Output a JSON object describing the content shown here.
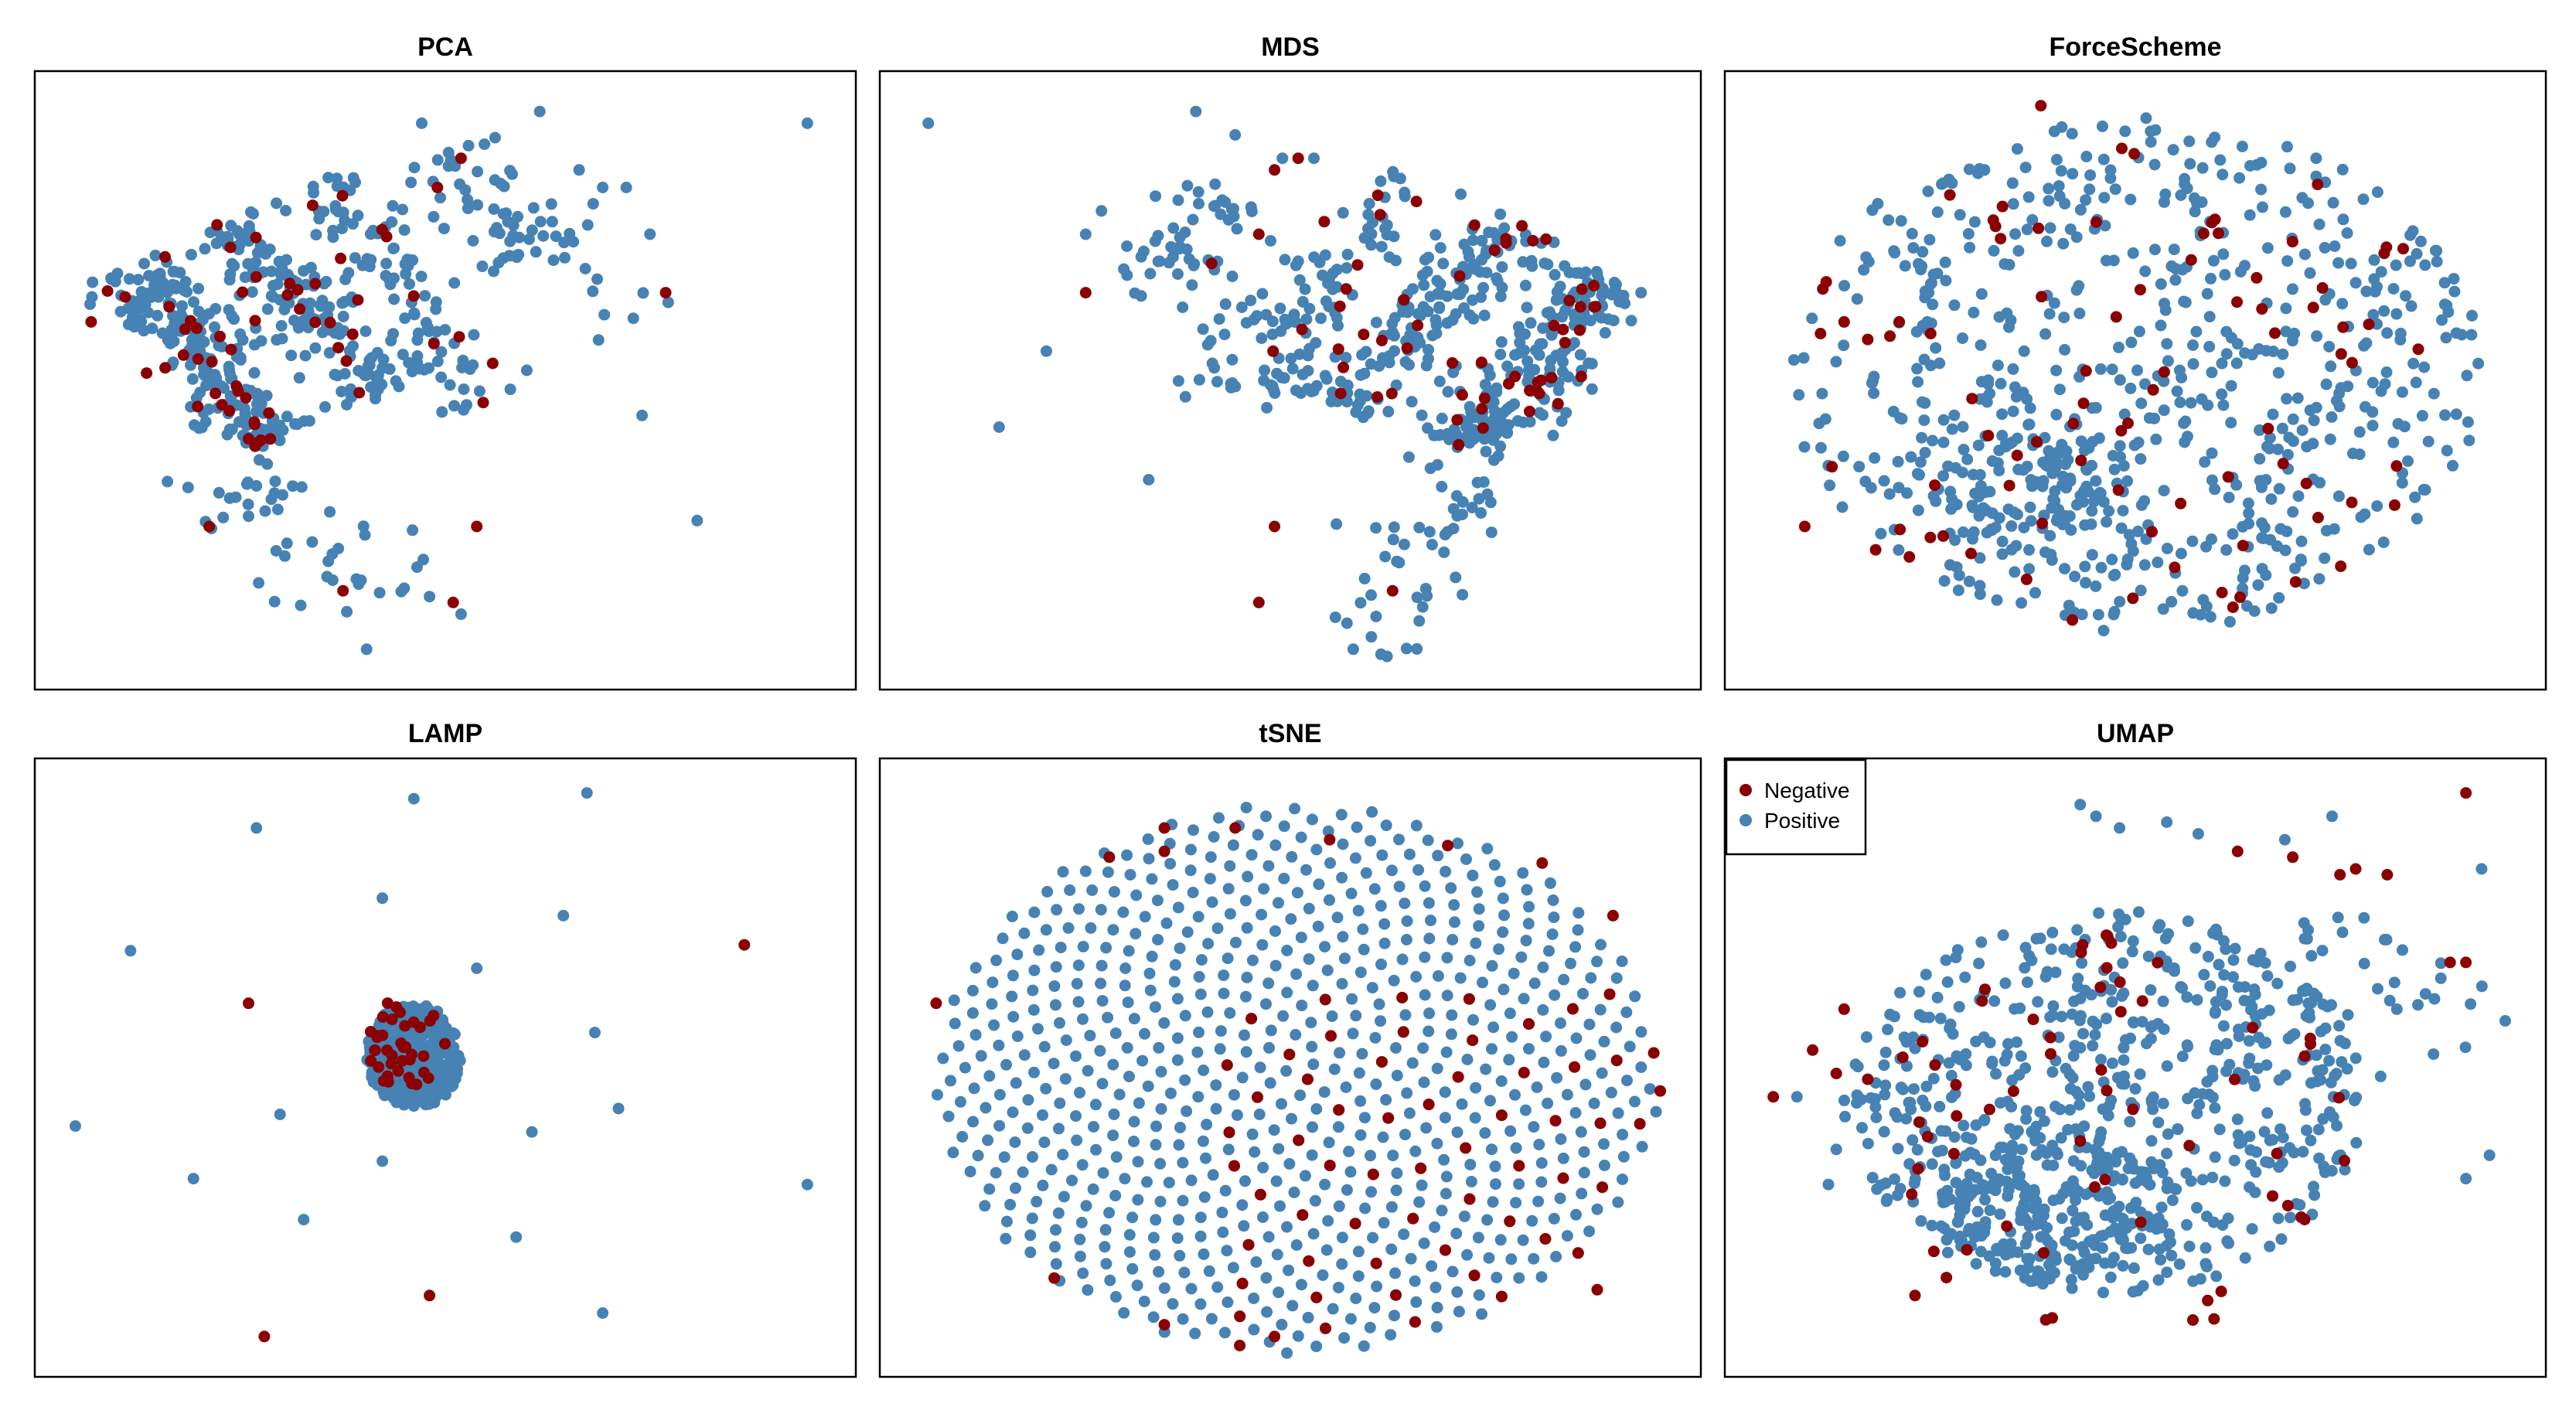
{
  "colors": {
    "negative": "#8b0000",
    "positive": "#4682b4",
    "frame": "#000000"
  },
  "legend": {
    "entries": [
      {
        "label": "Negative",
        "color": "#8b0000"
      },
      {
        "label": "Positive",
        "color": "#4682b4"
      }
    ],
    "placement": "top-left of UMAP panel"
  },
  "chart_data": [
    {
      "type": "scatter",
      "title": "PCA",
      "xlim": [
        0,
        100
      ],
      "ylim": [
        0,
        100
      ],
      "axes": "none",
      "series": [
        {
          "name": "Positive",
          "color": "#4682b4",
          "pattern": [
            {
              "kind": "band",
              "n": 200,
              "x0": 10,
              "y0": 70,
              "x1": 28,
              "y1": 40,
              "spread": 3.2
            },
            {
              "kind": "band",
              "n": 150,
              "x0": 21,
              "y0": 77,
              "x1": 43,
              "y1": 48,
              "spread": 3.0
            },
            {
              "kind": "band",
              "n": 90,
              "x0": 34,
              "y0": 85,
              "x1": 56,
              "y1": 45,
              "spread": 3.0
            },
            {
              "kind": "band",
              "n": 50,
              "x0": 50,
              "y0": 90,
              "x1": 62,
              "y1": 70,
              "spread": 4.0
            },
            {
              "kind": "band",
              "n": 50,
              "x0": 22,
              "y0": 38,
              "x1": 42,
              "y1": 10,
              "spread": 4.5
            },
            {
              "kind": "band",
              "n": 20,
              "x0": 58,
              "y0": 80,
              "x1": 75,
              "y1": 60,
              "spread": 4.0
            },
            {
              "kind": "list",
              "points": [
                [
                  62,
                  96
                ],
                [
                  96,
                  94
                ],
                [
                  47,
                  94
                ],
                [
                  67,
                  86
                ],
                [
                  70,
                  83
                ],
                [
                  73,
                  83
                ],
                [
                  76,
                  75
                ],
                [
                  75,
                  44
                ],
                [
                  82,
                  26
                ],
                [
                  52,
                  10
                ],
                [
                  48,
                  13
                ],
                [
                  40,
                  4
                ]
              ]
            }
          ]
        },
        {
          "name": "Negative",
          "color": "#8b0000",
          "pattern": [
            {
              "kind": "band",
              "n": 28,
              "x0": 10,
              "y0": 70,
              "x1": 28,
              "y1": 40,
              "spread": 3.0
            },
            {
              "kind": "band",
              "n": 18,
              "x0": 21,
              "y0": 77,
              "x1": 43,
              "y1": 48,
              "spread": 3.0
            },
            {
              "kind": "band",
              "n": 10,
              "x0": 34,
              "y0": 85,
              "x1": 56,
              "y1": 45,
              "spread": 3.0
            },
            {
              "kind": "list",
              "points": [
                [
                  49,
                  83
                ],
                [
                  52,
                  88
                ],
                [
                  78,
                  65
                ],
                [
                  54,
                  25
                ],
                [
                  51,
                  12
                ],
                [
                  37,
                  14
                ],
                [
                  25,
                  40
                ],
                [
                  20,
                  25
                ],
                [
                  5,
                  60
                ]
              ]
            }
          ]
        }
      ]
    },
    {
      "type": "scatter",
      "title": "MDS",
      "xlim": [
        0,
        100
      ],
      "ylim": [
        0,
        100
      ],
      "axes": "none",
      "series": [
        {
          "name": "Positive",
          "color": "#4682b4",
          "pattern": [
            {
              "kind": "band",
              "n": 200,
              "x0": 72,
              "y0": 38,
              "x1": 90,
              "y1": 68,
              "spread": 3.2
            },
            {
              "kind": "band",
              "n": 150,
              "x0": 57,
              "y0": 45,
              "x1": 79,
              "y1": 77,
              "spread": 3.0
            },
            {
              "kind": "band",
              "n": 90,
              "x0": 44,
              "y0": 45,
              "x1": 65,
              "y1": 85,
              "spread": 3.0
            },
            {
              "kind": "band",
              "n": 50,
              "x0": 30,
              "y0": 65,
              "x1": 44,
              "y1": 82,
              "spread": 4.0
            },
            {
              "kind": "band",
              "n": 50,
              "x0": 58,
              "y0": 5,
              "x1": 75,
              "y1": 35,
              "spread": 4.5
            },
            {
              "kind": "band",
              "n": 20,
              "x0": 37,
              "y0": 45,
              "x1": 48,
              "y1": 65,
              "spread": 3.5
            },
            {
              "kind": "list",
              "points": [
                [
                  4,
                  94
                ],
                [
                  38,
                  96
                ],
                [
                  43,
                  92
                ],
                [
                  49,
                  88
                ],
                [
                  53,
                  88
                ],
                [
                  24,
                  75
                ],
                [
                  26,
                  79
                ],
                [
                  19,
                  55
                ],
                [
                  13,
                  42
                ],
                [
                  32,
                  33
                ],
                [
                  58,
                  4
                ]
              ]
            }
          ]
        },
        {
          "name": "Negative",
          "color": "#8b0000",
          "pattern": [
            {
              "kind": "band",
              "n": 28,
              "x0": 72,
              "y0": 38,
              "x1": 90,
              "y1": 68,
              "spread": 3.0
            },
            {
              "kind": "band",
              "n": 18,
              "x0": 57,
              "y0": 45,
              "x1": 79,
              "y1": 77,
              "spread": 3.0
            },
            {
              "kind": "band",
              "n": 10,
              "x0": 44,
              "y0": 45,
              "x1": 65,
              "y1": 85,
              "spread": 3.0
            },
            {
              "kind": "list",
              "points": [
                [
                  24,
                  65
                ],
                [
                  48,
                  86
                ],
                [
                  51,
                  88
                ],
                [
                  46,
                  75
                ],
                [
                  40,
                  70
                ],
                [
                  46,
                  12
                ],
                [
                  63,
                  14
                ],
                [
                  48,
                  25
                ]
              ]
            }
          ]
        }
      ]
    },
    {
      "type": "scatter",
      "title": "ForceScheme",
      "xlim": [
        0,
        100
      ],
      "ylim": [
        0,
        100
      ],
      "axes": "none",
      "series": [
        {
          "name": "Positive",
          "color": "#4682b4",
          "pattern": [
            {
              "kind": "blob",
              "n": 640,
              "cx": 50,
              "cy": 51,
              "rx": 44,
              "ry": 44
            },
            {
              "kind": "blob",
              "n": 90,
              "cx": 38,
              "cy": 33,
              "rx": 12,
              "ry": 10
            }
          ]
        },
        {
          "name": "Negative",
          "color": "#8b0000",
          "pattern": [
            {
              "kind": "blob",
              "n": 75,
              "cx": 50,
              "cy": 51,
              "rx": 43,
              "ry": 43
            },
            {
              "kind": "list",
              "points": [
                [
                  38,
                  97
                ],
                [
                  42,
                  9
                ],
                [
                  8,
                  25
                ],
                [
                  17,
                  21
                ],
                [
                  13,
                  60
                ],
                [
                  10,
                  58
                ],
                [
                  16,
                  57
                ],
                [
                  20,
                  60
                ],
                [
                  24,
                  58
                ],
                [
                  34,
                  32
                ],
                [
                  55,
                  18
                ]
              ]
            }
          ]
        }
      ]
    },
    {
      "type": "scatter",
      "title": "LAMP",
      "xlim": [
        0,
        100
      ],
      "ylim": [
        0,
        100
      ],
      "axes": "none",
      "series": [
        {
          "name": "Positive",
          "color": "#4682b4",
          "pattern": [
            {
              "kind": "blob",
              "n": 420,
              "cx": 46,
              "cy": 52,
              "rx": 6,
              "ry": 9
            },
            {
              "kind": "list",
              "points": [
                [
                  46,
                  96
                ],
                [
                  68,
                  97
                ],
                [
                  26,
                  91
                ],
                [
                  42,
                  79
                ],
                [
                  65,
                  76
                ],
                [
                  10,
                  70
                ],
                [
                  54,
                  67
                ],
                [
                  69,
                  56
                ],
                [
                  3,
                  40
                ],
                [
                  29,
                  42
                ],
                [
                  61,
                  39
                ],
                [
                  72,
                  43
                ],
                [
                  18,
                  31
                ],
                [
                  42,
                  34
                ],
                [
                  32,
                  24
                ],
                [
                  59,
                  21
                ],
                [
                  96,
                  30
                ],
                [
                  70,
                  8
                ]
              ]
            }
          ]
        },
        {
          "name": "Negative",
          "color": "#8b0000",
          "pattern": [
            {
              "kind": "blob",
              "n": 40,
              "cx": 45,
              "cy": 54,
              "rx": 5,
              "ry": 8
            },
            {
              "kind": "list",
              "points": [
                [
                  88,
                  71
                ],
                [
                  25,
                  61
                ],
                [
                  48,
                  11
                ],
                [
                  27,
                  4
                ]
              ]
            }
          ]
        }
      ]
    },
    {
      "type": "scatter",
      "title": "tSNE",
      "xlim": [
        0,
        100
      ],
      "ylim": [
        0,
        100
      ],
      "axes": "none",
      "series": [
        {
          "name": "Positive",
          "color": "#4682b4",
          "pattern": [
            {
              "kind": "spiral",
              "n": 740,
              "cx": 51,
              "cy": 48,
              "rx": 46,
              "ry": 47
            }
          ]
        },
        {
          "name": "Negative",
          "color": "#8b0000",
          "pattern": [
            {
              "kind": "spiral-subset",
              "every": 6,
              "n": 740,
              "cx": 51,
              "cy": 48,
              "rx": 46,
              "ry": 47,
              "region": "lower-right"
            },
            {
              "kind": "list",
              "points": [
                [
                  5,
                  61
                ],
                [
                  34,
                  91
                ],
                [
                  43,
                  91
                ],
                [
                  27,
                  86
                ],
                [
                  34,
                  87
                ],
                [
                  55,
                  89
                ],
                [
                  70,
                  88
                ],
                [
                  82,
                  85
                ],
                [
                  91,
                  76
                ],
                [
                  97,
                  46
                ],
                [
                  20,
                  14
                ],
                [
                  34,
                  6
                ],
                [
                  48,
                  4
                ],
                [
                  89,
                  12
                ]
              ]
            }
          ]
        }
      ]
    },
    {
      "type": "scatter",
      "title": "UMAP",
      "xlim": [
        0,
        100
      ],
      "ylim": [
        0,
        100
      ],
      "axes": "none",
      "series": [
        {
          "name": "Positive",
          "color": "#4682b4",
          "pattern": [
            {
              "kind": "blob",
              "n": 620,
              "cx": 46,
              "cy": 44,
              "rx": 33,
              "ry": 33
            },
            {
              "kind": "blob",
              "n": 160,
              "cx": 38,
              "cy": 27,
              "rx": 14,
              "ry": 14
            },
            {
              "kind": "blob",
              "n": 50,
              "cx": 78,
              "cy": 62,
              "rx": 18,
              "ry": 14
            },
            {
              "kind": "list",
              "points": [
                [
                  43,
                  95
                ],
                [
                  45,
                  93
                ],
                [
                  48,
                  91
                ],
                [
                  54,
                  92
                ],
                [
                  58,
                  90
                ],
                [
                  75,
                  93
                ],
                [
                  69,
                  89
                ],
                [
                  94,
                  84
                ],
                [
                  97,
                  58
                ],
                [
                  95,
                  35
                ],
                [
                  92,
                  31
                ],
                [
                  7,
                  45
                ],
                [
                  12,
                  36
                ],
                [
                  11,
                  30
                ]
              ]
            }
          ]
        },
        {
          "name": "Negative",
          "color": "#8b0000",
          "pattern": [
            {
              "kind": "blob",
              "n": 58,
              "cx": 47,
              "cy": 38,
              "rx": 30,
              "ry": 35
            },
            {
              "kind": "list",
              "points": [
                [
                  92,
                  97
                ],
                [
                  4,
                  45
                ],
                [
                  13,
                  60
                ],
                [
                  9,
                  53
                ],
                [
                  16,
                  48
                ],
                [
                  12,
                  49
                ],
                [
                  90,
                  68
                ],
                [
                  92,
                  68
                ],
                [
                  63,
                  87
                ],
                [
                  70,
                  86
                ],
                [
                  76,
                  83
                ],
                [
                  82,
                  83
                ],
                [
                  78,
                  84
                ],
                [
                  60,
                  7
                ],
                [
                  22,
                  11
                ]
              ]
            }
          ]
        }
      ]
    }
  ]
}
